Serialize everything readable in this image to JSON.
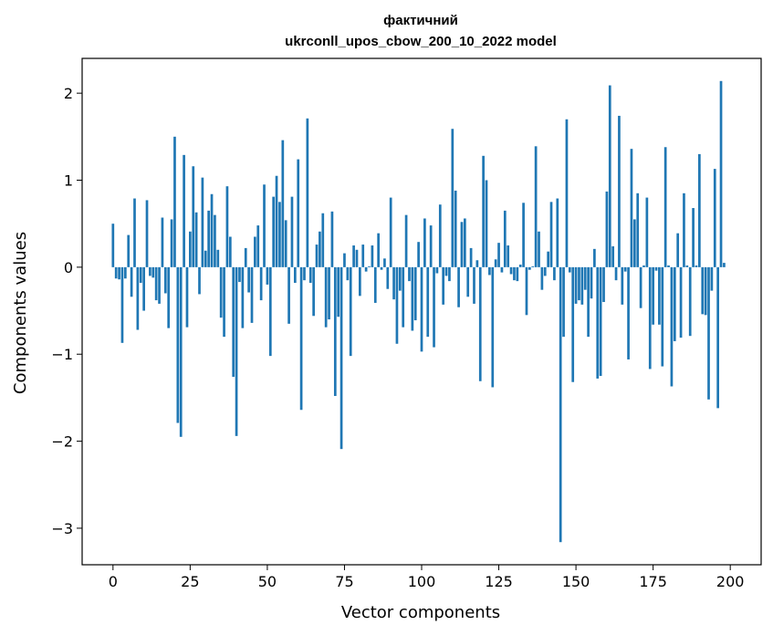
{
  "chart_data": {
    "type": "bar",
    "title": "фактичний",
    "subtitle": "ukrconll_upos_cbow_200_10_2022 model",
    "xlabel": "Vector components",
    "ylabel": "Components values",
    "xlim": [
      -10,
      210
    ],
    "ylim": [
      -3.42,
      2.4
    ],
    "xticks": [
      0,
      25,
      50,
      75,
      100,
      125,
      150,
      175,
      200
    ],
    "yticks": [
      -3,
      -2,
      -1,
      0,
      1,
      2
    ],
    "grid": false,
    "color": "#1f77b4",
    "values": [
      0.5,
      -0.13,
      -0.14,
      -0.87,
      -0.13,
      0.37,
      -0.34,
      0.79,
      -0.72,
      -0.18,
      -0.5,
      0.77,
      -0.1,
      -0.12,
      -0.38,
      -0.42,
      0.57,
      -0.3,
      -0.7,
      0.55,
      1.5,
      -1.79,
      -1.95,
      1.29,
      -0.69,
      0.41,
      1.16,
      0.63,
      -0.31,
      1.03,
      0.19,
      0.65,
      0.84,
      0.6,
      0.2,
      -0.58,
      -0.8,
      0.93,
      0.35,
      -1.26,
      -1.94,
      -0.17,
      -0.7,
      0.22,
      -0.29,
      -0.64,
      0.35,
      0.48,
      -0.38,
      0.95,
      -0.2,
      -1.02,
      0.81,
      1.05,
      0.75,
      1.46,
      0.54,
      -0.65,
      0.81,
      -0.18,
      1.24,
      -1.64,
      -0.15,
      1.71,
      -0.18,
      -0.56,
      0.26,
      0.41,
      0.62,
      -0.69,
      -0.6,
      0.64,
      -1.48,
      -0.57,
      -2.09,
      0.16,
      -0.15,
      -1.02,
      0.25,
      0.2,
      -0.33,
      0.26,
      -0.05,
      0.01,
      0.25,
      -0.41,
      0.39,
      -0.03,
      0.1,
      -0.25,
      0.8,
      -0.37,
      -0.88,
      -0.27,
      -0.69,
      0.6,
      -0.16,
      -0.73,
      -0.61,
      0.29,
      -0.97,
      0.56,
      -0.8,
      0.48,
      -0.92,
      -0.07,
      0.72,
      -0.43,
      -0.1,
      -0.16,
      1.59,
      0.88,
      -0.46,
      0.52,
      0.56,
      -0.34,
      0.22,
      -0.42,
      0.08,
      -1.31,
      1.28,
      1.0,
      -0.09,
      -1.38,
      0.09,
      0.28,
      -0.06,
      0.65,
      0.25,
      -0.08,
      -0.15,
      -0.16,
      0.03,
      0.74,
      -0.55,
      -0.03,
      0.01,
      1.39,
      0.41,
      -0.26,
      -0.1,
      0.18,
      0.75,
      -0.15,
      0.79,
      -3.16,
      -0.8,
      1.7,
      -0.06,
      -1.32,
      -0.42,
      -0.38,
      -0.43,
      -0.26,
      -0.8,
      -0.36,
      0.21,
      -1.28,
      -1.25,
      -0.4,
      0.87,
      2.09,
      0.24,
      -0.15,
      1.74,
      -0.43,
      -0.05,
      -1.06,
      1.36,
      0.55,
      0.85,
      -0.47,
      0.02,
      0.8,
      -1.17,
      -0.66,
      -0.04,
      -0.66,
      -1.14,
      1.38,
      0.02,
      -1.37,
      -0.85,
      0.39,
      -0.81,
      0.85,
      0.02,
      -0.79,
      0.68,
      0.02,
      1.3,
      -0.54,
      -0.55,
      -1.52,
      -0.27,
      1.13,
      -1.62,
      2.14,
      0.05
    ]
  }
}
